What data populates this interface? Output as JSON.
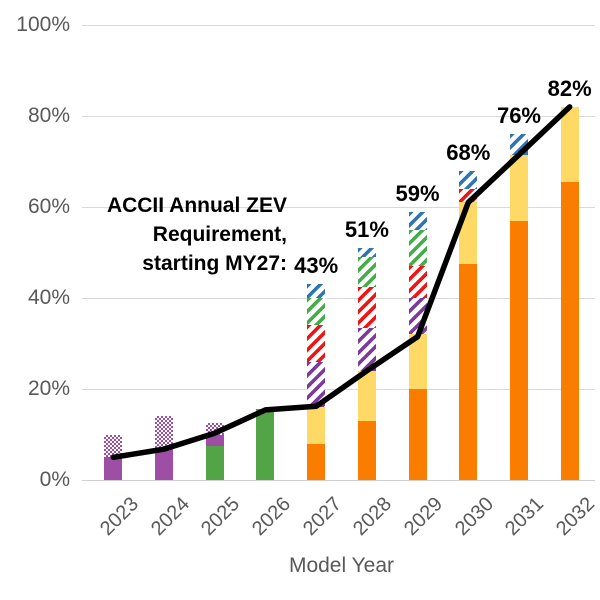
{
  "annotation": {
    "text": "ACCII Annual ZEV\nRequirement,\nstarting MY27:"
  },
  "chart_data": {
    "type": "bar",
    "subtype": "stacked-bar-with-line-overlay",
    "title": "",
    "xlabel": "Model Year",
    "ylabel": "",
    "ylim": [
      0,
      100
    ],
    "grid": true,
    "legend_position": "none",
    "categories": [
      "2023",
      "2024",
      "2025",
      "2026",
      "2027",
      "2028",
      "2029",
      "2030",
      "2031",
      "2032"
    ],
    "y_ticks": [
      "0%",
      "20%",
      "40%",
      "60%",
      "80%",
      "100%"
    ],
    "series": [
      {
        "name": "solid-green",
        "pattern": "solid",
        "color": "#52A447",
        "values": [
          0,
          0,
          7.5,
          15.5,
          0,
          0,
          0,
          0,
          0,
          0
        ]
      },
      {
        "name": "solid-purple",
        "pattern": "solid",
        "color": "#9E4FA5",
        "values": [
          5,
          7,
          2.5,
          0,
          0,
          0,
          0,
          0,
          0,
          0
        ]
      },
      {
        "name": "checkered-purple",
        "pattern": "check",
        "color": "#9E4FA5",
        "values": [
          5,
          7,
          2.5,
          0,
          0,
          0,
          0,
          0,
          0,
          0
        ]
      },
      {
        "name": "orange",
        "pattern": "solid",
        "color": "#FA7D00",
        "values": [
          0,
          0,
          0,
          0,
          8,
          13,
          20,
          47.5,
          57,
          65.5
        ]
      },
      {
        "name": "light-yellow",
        "pattern": "solid",
        "color": "#FFD965",
        "values": [
          0,
          0,
          0,
          0,
          8,
          11,
          12,
          13.5,
          14.5,
          16.5
        ]
      },
      {
        "name": "purple-hatch",
        "pattern": "hatch",
        "color": "#7C3A9D",
        "values": [
          0,
          0,
          0,
          0,
          10,
          9.5,
          8,
          0,
          0,
          0
        ]
      },
      {
        "name": "red-hatch",
        "pattern": "hatch",
        "color": "#F01414",
        "values": [
          0,
          0,
          0,
          0,
          8,
          9,
          7,
          3,
          0,
          0
        ]
      },
      {
        "name": "green-hatch",
        "pattern": "hatch",
        "color": "#42AD49",
        "values": [
          0,
          0,
          0,
          0,
          6,
          6.5,
          8,
          0,
          0,
          0
        ]
      },
      {
        "name": "blue-hatch",
        "pattern": "hatch",
        "color": "#2E75B6",
        "values": [
          0,
          0,
          0,
          0,
          3,
          2,
          4,
          4,
          4.5,
          0
        ]
      }
    ],
    "bar_total_labels": [
      "",
      "",
      "",
      "",
      "43%",
      "51%",
      "59%",
      "68%",
      "76%",
      "82%"
    ],
    "line_series": {
      "name": "zev-trajectory-line",
      "color": "#000000",
      "values": [
        5,
        6.8,
        10.3,
        15.4,
        16.2,
        24,
        31.5,
        61,
        71.5,
        82
      ]
    }
  },
  "colors": {
    "grid": "#d9d9d9",
    "axis_text": "#595959",
    "label_text": "#000000"
  }
}
